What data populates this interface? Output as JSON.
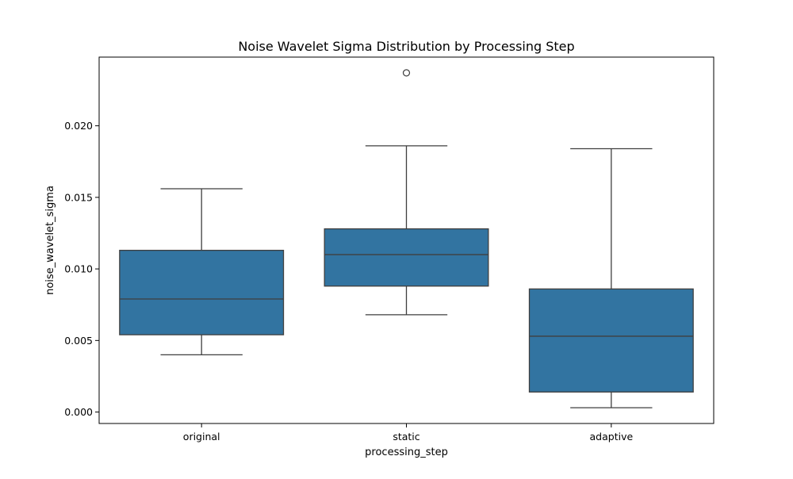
{
  "chart_data": {
    "type": "box",
    "title": "Noise Wavelet Sigma Distribution by Processing Step",
    "xlabel": "processing_step",
    "ylabel": "noise_wavelet_sigma",
    "ylim": [
      -0.0008,
      0.0248
    ],
    "yticks": [
      0.0,
      0.005,
      0.01,
      0.015,
      0.02
    ],
    "ytick_labels": [
      "0.000",
      "0.005",
      "0.010",
      "0.015",
      "0.020"
    ],
    "categories": [
      "original",
      "static",
      "adaptive"
    ],
    "boxes": [
      {
        "category": "original",
        "whisker_low": 0.004,
        "q1": 0.0054,
        "median": 0.0079,
        "q3": 0.0113,
        "whisker_high": 0.0156,
        "outliers": []
      },
      {
        "category": "static",
        "whisker_low": 0.0068,
        "q1": 0.0088,
        "median": 0.011,
        "q3": 0.0128,
        "whisker_high": 0.0186,
        "outliers": [
          0.0237
        ]
      },
      {
        "category": "adaptive",
        "whisker_low": 0.0003,
        "q1": 0.0014,
        "median": 0.0053,
        "q3": 0.0086,
        "whisker_high": 0.0184,
        "outliers": []
      }
    ],
    "box_color": "#3274a1",
    "line_color": "#3f3f3f",
    "grid": false,
    "legend": "none"
  }
}
